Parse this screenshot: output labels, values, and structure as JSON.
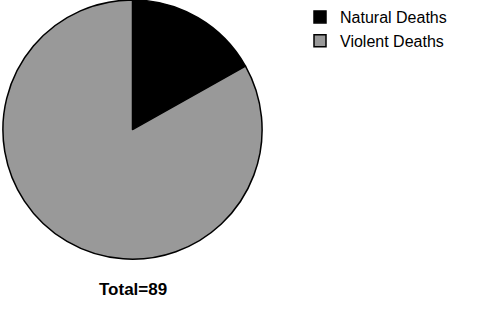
{
  "chart_data": {
    "type": "pie",
    "categories": [
      "Natural Deaths",
      "Violent Deaths"
    ],
    "values": [
      15,
      74
    ],
    "colors": [
      "#000000",
      "#999999"
    ],
    "legend": "top-right",
    "annotations": [
      "Total=89"
    ]
  }
}
